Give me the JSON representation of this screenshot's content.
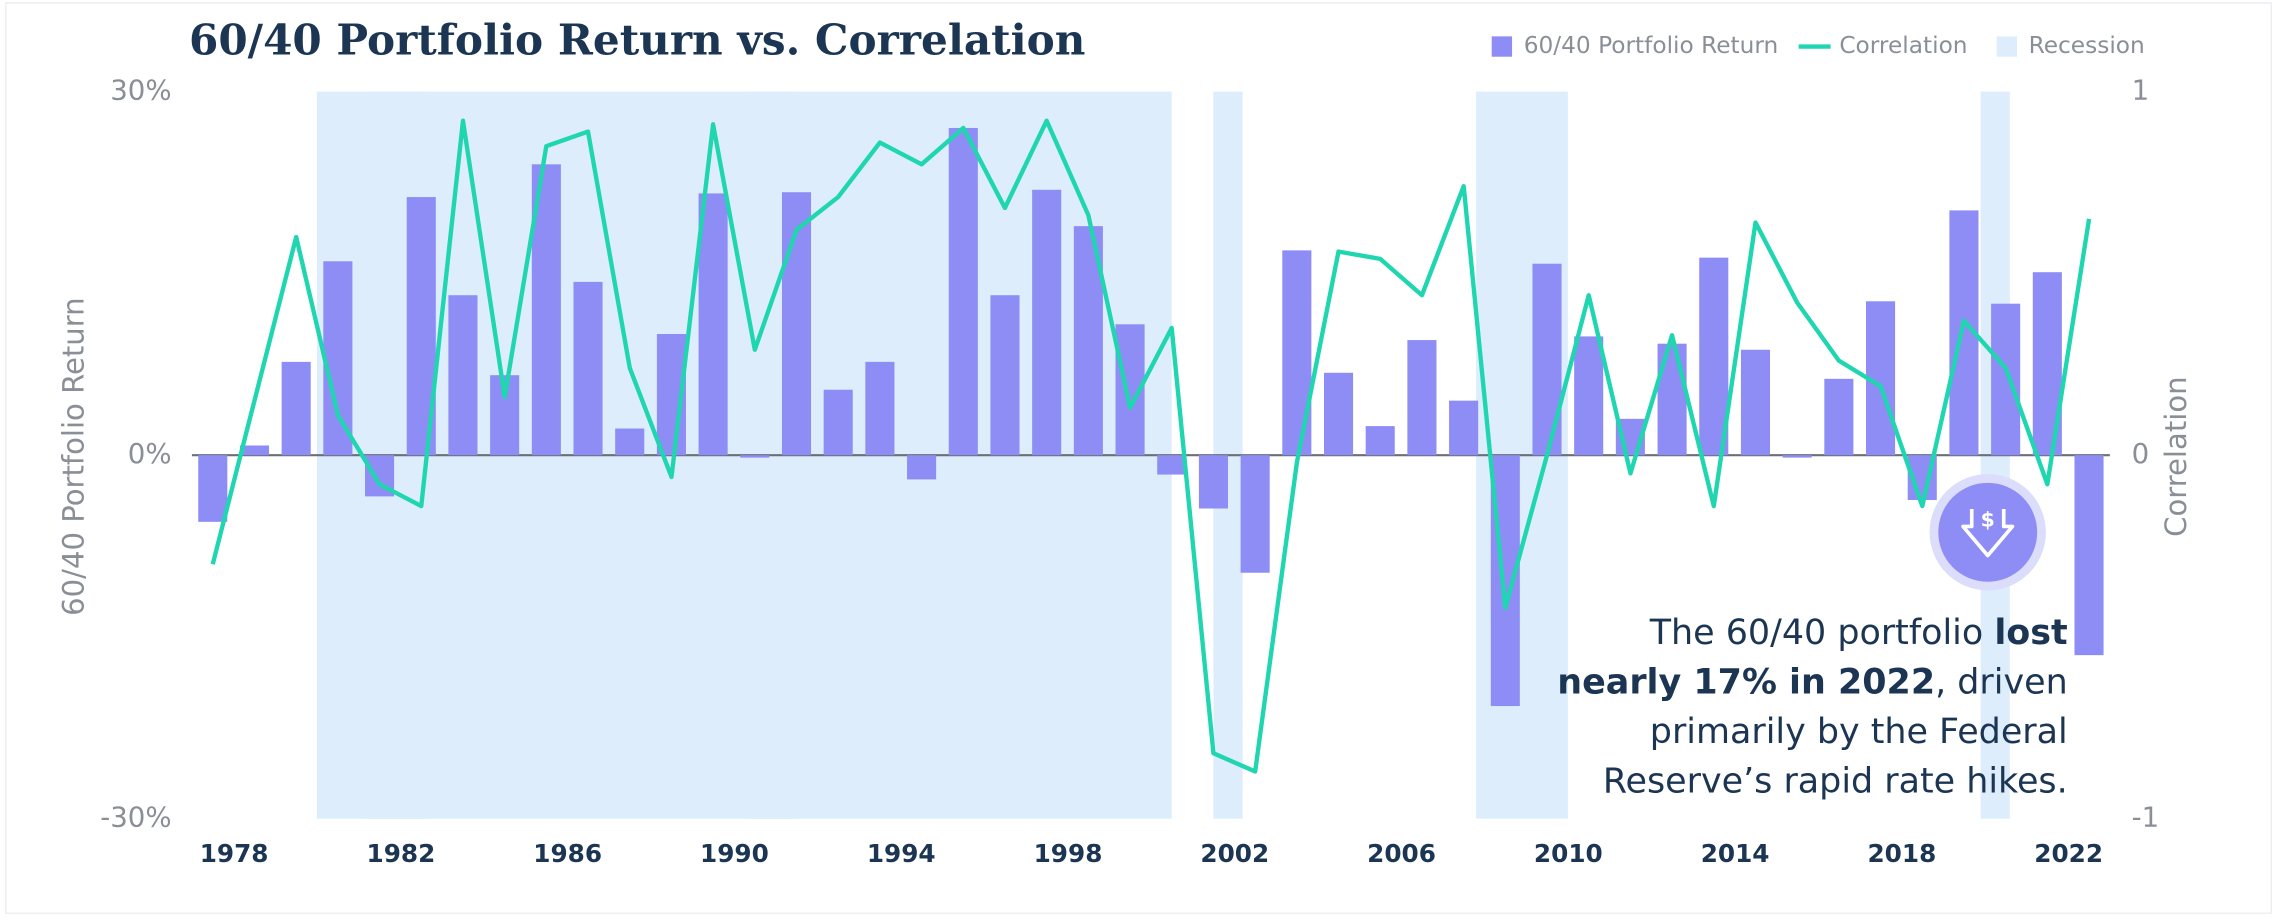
{
  "chart_data": {
    "type": "bar-line",
    "title": "60/40 Portfolio Return vs. Correlation",
    "y_label": "60/40 Portfolio Return",
    "y2_label": "Correlation",
    "categories": [
      null,
      "1978",
      null,
      null,
      null,
      "1982",
      null,
      null,
      null,
      "1986",
      null,
      null,
      null,
      "1990",
      null,
      null,
      null,
      "1994",
      null,
      null,
      null,
      "1998",
      null,
      null,
      null,
      "2002",
      null,
      null,
      null,
      "2006",
      null,
      null,
      null,
      "2010",
      null,
      null,
      null,
      "2014",
      null,
      null,
      null,
      "2018",
      null,
      null,
      null,
      "2022"
    ],
    "series": [
      {
        "name": "60/40 Portfolio Return",
        "type": "bar",
        "color": "#8e8df5",
        "values": [
          -5.5,
          0.8,
          7.7,
          16,
          -3.4,
          21.3,
          13.2,
          6.6,
          24,
          14.3,
          2.2,
          10,
          21.6,
          -0.2,
          21.7,
          5.4,
          7.7,
          -2,
          27,
          13.2,
          21.9,
          18.9,
          10.8,
          -1.6,
          -4.4,
          -9.7,
          16.9,
          6.8,
          2.4,
          9.5,
          4.5,
          -20.7,
          15.8,
          9.8,
          3,
          9.2,
          16.3,
          8.7,
          -0.2,
          6.3,
          12.7,
          -3.7,
          20.2,
          12.5,
          15.1,
          -16.5
        ]
      },
      {
        "name": "Correlation",
        "type": "line",
        "axis": "y2",
        "color": "#1fd6b0",
        "values": [
          -0.3,
          0.15,
          0.6,
          0.11,
          -0.08,
          -0.14,
          0.92,
          0.16,
          0.85,
          0.89,
          0.24,
          -0.06,
          0.91,
          0.29,
          0.62,
          0.71,
          0.86,
          0.8,
          0.9,
          0.68,
          0.92,
          0.66,
          0.13,
          0.35,
          -0.82,
          -0.87,
          -0.02,
          0.56,
          0.54,
          0.44,
          0.74,
          -0.42,
          0,
          0.44,
          -0.05,
          0.33,
          -0.14,
          0.64,
          0.42,
          0.26,
          0.19,
          -0.14,
          0.37,
          0.24,
          -0.08,
          0.65
        ]
      }
    ],
    "recessions": {
      "name": "Recession",
      "color": "#ddedfb",
      "spans": [
        [
          1979.5,
          2000
        ],
        [
          1980.7,
          1982.2
        ],
        [
          1989.8,
          1991
        ],
        [
          2001,
          2001.7
        ],
        [
          2007.3,
          2009.5
        ],
        [
          2019.4,
          2020.1
        ]
      ]
    },
    "ylim": [
      -30,
      30
    ],
    "yticks": [
      {
        "value": -30,
        "label": "-30%"
      },
      {
        "value": 0,
        "label": "0%"
      },
      {
        "value": 30,
        "label": "30%"
      }
    ],
    "y2lim": [
      -1,
      1
    ],
    "y2ticks": [
      -1,
      0,
      1
    ],
    "legend": "top-right",
    "annotation": {
      "lines": [
        [
          {
            "text": "The 60/40 portfolio ",
            "bold": false
          },
          {
            "text": "lost",
            "bold": true
          }
        ],
        [
          {
            "text": "nearly 17% in 2022",
            "bold": true
          },
          {
            "text": ", driven",
            "bold": false
          }
        ],
        [
          {
            "text": "primarily by the Federal",
            "bold": false
          }
        ],
        [
          {
            "text": "Reserve’s rapid rate hikes.",
            "bold": false
          }
        ]
      ]
    }
  }
}
